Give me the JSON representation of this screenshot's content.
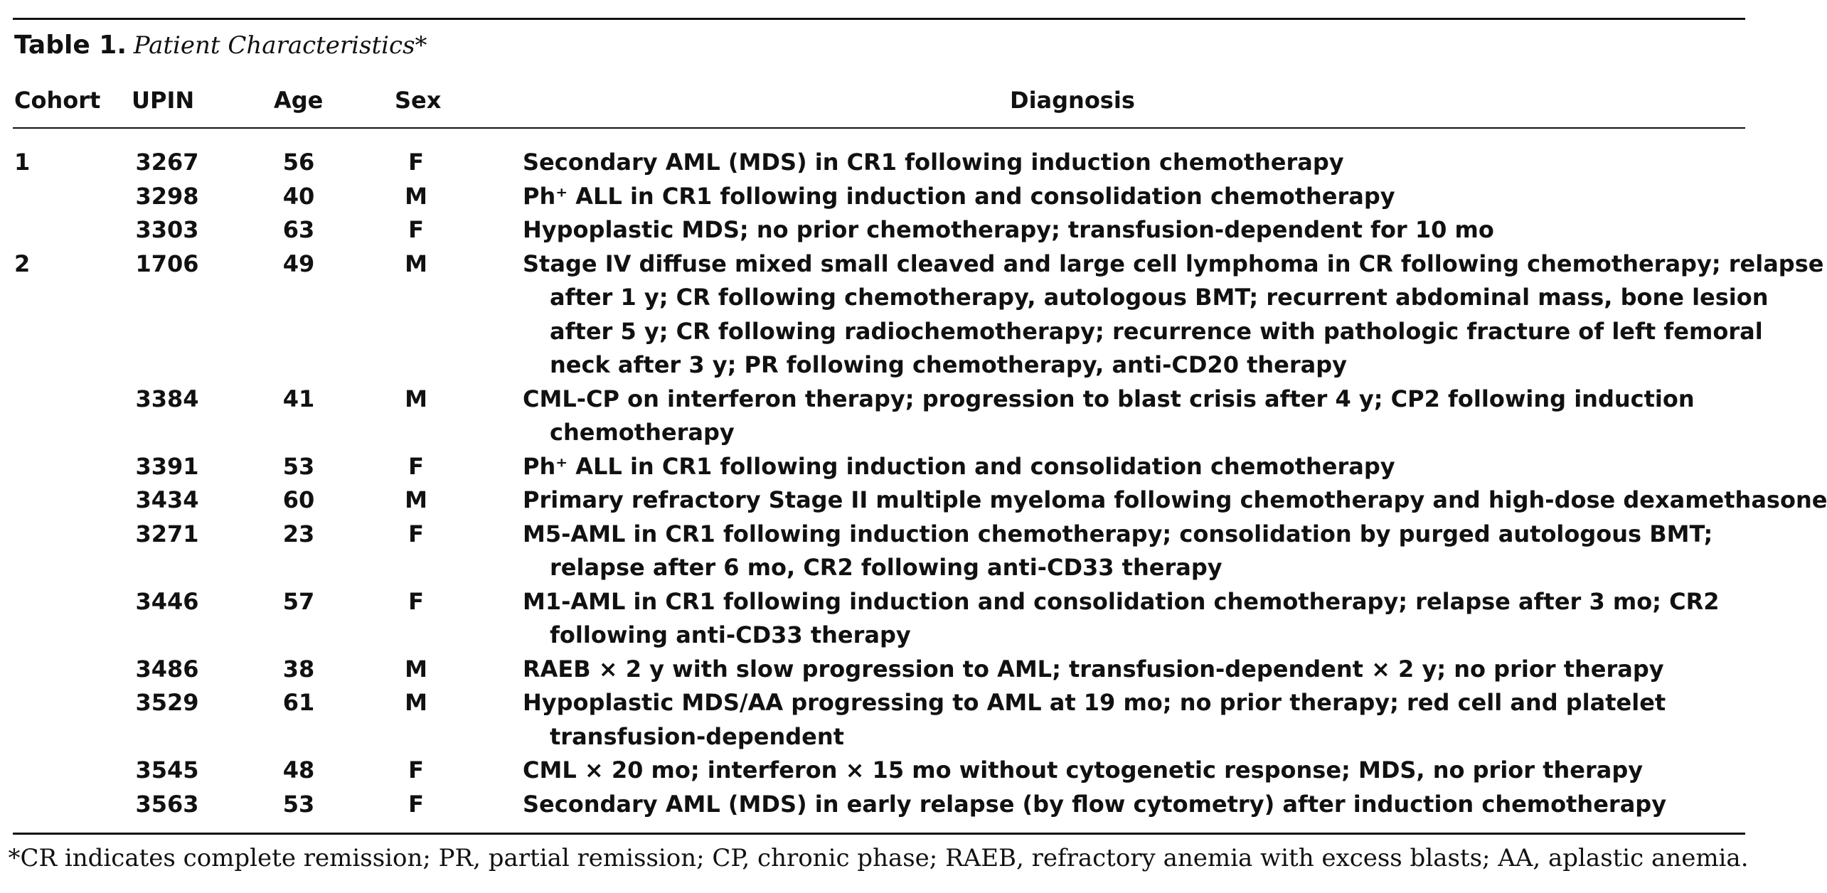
{
  "caption": {
    "label": "Table 1.",
    "title": "Patient Characteristics*"
  },
  "columns": {
    "cohort": "Cohort",
    "upin": "UPIN",
    "age": "Age",
    "sex": "Sex",
    "diagnosis": "Diagnosis"
  },
  "rows": [
    {
      "cohort": "1",
      "upin": "3267",
      "age": "56",
      "sex": "F",
      "diagnosis": [
        "Secondary AML (MDS) in CR1 following induction chemotherapy"
      ]
    },
    {
      "cohort": "",
      "upin": "3298",
      "age": "40",
      "sex": "M",
      "diagnosis": [
        "Ph⁺ ALL in CR1 following induction and consolidation chemotherapy"
      ]
    },
    {
      "cohort": "",
      "upin": "3303",
      "age": "63",
      "sex": "F",
      "diagnosis": [
        "Hypoplastic MDS; no prior chemotherapy; transfusion-dependent for 10 mo"
      ]
    },
    {
      "cohort": "2",
      "upin": "1706",
      "age": "49",
      "sex": "M",
      "diagnosis": [
        "Stage IV diffuse mixed small cleaved and large cell lymphoma in CR following chemotherapy; relapse",
        "after 1 y; CR following chemotherapy, autologous BMT; recurrent abdominal mass, bone lesion",
        "after 5 y; CR following radiochemotherapy; recurrence with pathologic fracture of left femoral",
        "neck after 3 y; PR following chemotherapy, anti-CD20 therapy"
      ]
    },
    {
      "cohort": "",
      "upin": "3384",
      "age": "41",
      "sex": "M",
      "diagnosis": [
        "CML-CP on interferon therapy; progression to blast crisis after 4 y; CP2 following induction",
        "chemotherapy"
      ]
    },
    {
      "cohort": "",
      "upin": "3391",
      "age": "53",
      "sex": "F",
      "diagnosis": [
        "Ph⁺ ALL in CR1 following induction and consolidation chemotherapy"
      ]
    },
    {
      "cohort": "",
      "upin": "3434",
      "age": "60",
      "sex": "M",
      "diagnosis": [
        "Primary refractory Stage II multiple myeloma following chemotherapy and high-dose dexamethasone"
      ]
    },
    {
      "cohort": "",
      "upin": "3271",
      "age": "23",
      "sex": "F",
      "diagnosis": [
        "M5-AML in CR1 following induction chemotherapy; consolidation by purged autologous BMT;",
        "relapse after 6 mo, CR2 following anti-CD33 therapy"
      ]
    },
    {
      "cohort": "",
      "upin": "3446",
      "age": "57",
      "sex": "F",
      "diagnosis": [
        "M1-AML in CR1 following induction and consolidation chemotherapy; relapse after 3 mo; CR2",
        "following anti-CD33 therapy"
      ]
    },
    {
      "cohort": "",
      "upin": "3486",
      "age": "38",
      "sex": "M",
      "diagnosis": [
        "RAEB × 2 y with slow progression to AML; transfusion-dependent × 2 y; no prior therapy"
      ]
    },
    {
      "cohort": "",
      "upin": "3529",
      "age": "61",
      "sex": "M",
      "diagnosis": [
        "Hypoplastic MDS/AA progressing to AML at 19 mo; no prior therapy; red cell and platelet",
        "transfusion-dependent"
      ]
    },
    {
      "cohort": "",
      "upin": "3545",
      "age": "48",
      "sex": "F",
      "diagnosis": [
        "CML × 20 mo; interferon × 15 mo without cytogenetic response; MDS, no prior therapy"
      ]
    },
    {
      "cohort": "",
      "upin": "3563",
      "age": "53",
      "sex": "F",
      "diagnosis": [
        "Secondary AML (MDS) in early relapse (by flow cytometry) after induction chemotherapy"
      ]
    }
  ],
  "footnote": "*CR indicates complete remission; PR, partial remission; CP, chronic phase; RAEB, refractory anemia with excess blasts; AA, aplastic anemia."
}
